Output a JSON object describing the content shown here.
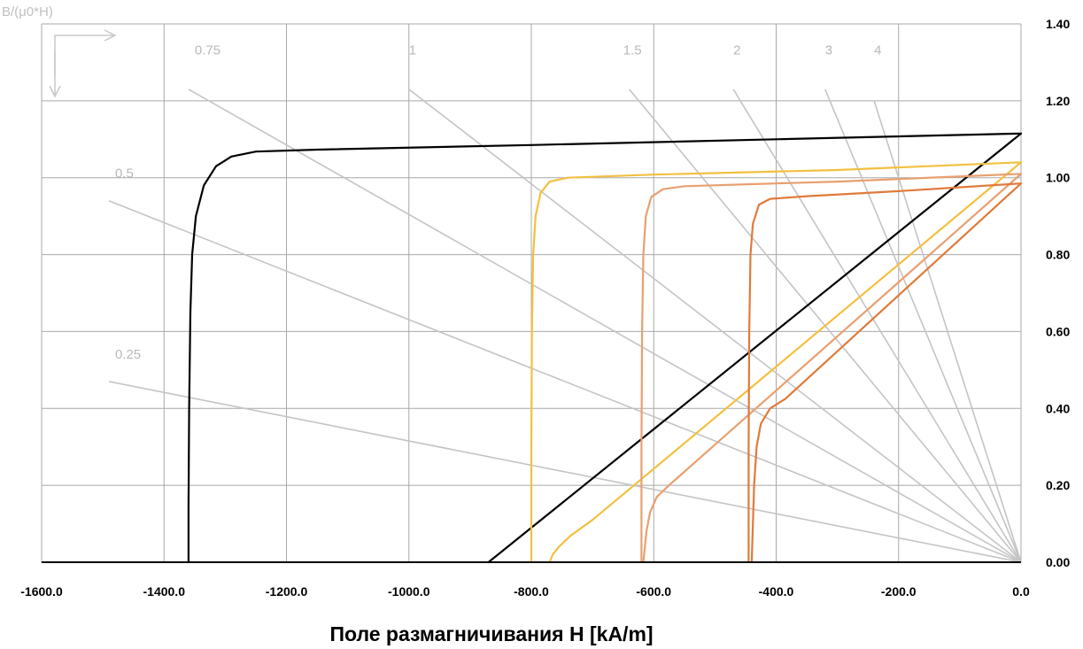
{
  "chart_data": {
    "type": "line",
    "title": "",
    "xlabel": "Поле размагничивания H [kA/m]",
    "ylabel": "B/(μ0*H)",
    "xlim": [
      -1600,
      0
    ],
    "ylim": [
      0,
      1.4
    ],
    "x_ticks": [
      "-1600.0",
      "-1400.0",
      "-1200.0",
      "-1000.0",
      "-800.0",
      "-600.0",
      "-400.0",
      "-200.0",
      "0.0"
    ],
    "y_ticks": [
      "0.00",
      "0.20",
      "0.40",
      "0.60",
      "0.80",
      "1.00",
      "1.20",
      "1.40"
    ],
    "grid": true,
    "y_axis_side": "right",
    "load_lines": [
      {
        "label": "0.25",
        "label_at": [
          -1480,
          0.53
        ],
        "from": [
          -1490,
          0.47
        ],
        "to": [
          0,
          0
        ]
      },
      {
        "label": "0.5",
        "label_at": [
          -1480,
          1.0
        ],
        "from": [
          -1490,
          0.94
        ],
        "to": [
          0,
          0
        ]
      },
      {
        "label": "0.75",
        "label_at": [
          -1350,
          1.32
        ],
        "from": [
          -1360,
          1.23
        ],
        "to": [
          0,
          0
        ]
      },
      {
        "label": "1",
        "label_at": [
          -1000,
          1.32
        ],
        "from": [
          -1000,
          1.23
        ],
        "to": [
          0,
          0
        ]
      },
      {
        "label": "1.5",
        "label_at": [
          -650,
          1.32
        ],
        "from": [
          -640,
          1.23
        ],
        "to": [
          0,
          0
        ]
      },
      {
        "label": "2",
        "label_at": [
          -470,
          1.32
        ],
        "from": [
          -470,
          1.23
        ],
        "to": [
          0,
          0
        ]
      },
      {
        "label": "3",
        "label_at": [
          -320,
          1.32
        ],
        "from": [
          -320,
          1.23
        ],
        "to": [
          0,
          0
        ]
      },
      {
        "label": "4",
        "label_at": [
          -240,
          1.32
        ],
        "from": [
          -240,
          1.2
        ],
        "to": [
          0,
          0
        ]
      }
    ],
    "series": [
      {
        "color": "#000000",
        "width": 2.2,
        "points": [
          [
            -1360,
            0
          ],
          [
            -1360,
            0.15
          ],
          [
            -1359,
            0.4
          ],
          [
            -1357,
            0.65
          ],
          [
            -1354,
            0.8
          ],
          [
            -1348,
            0.9
          ],
          [
            -1335,
            0.98
          ],
          [
            -1315,
            1.03
          ],
          [
            -1290,
            1.055
          ],
          [
            -1250,
            1.068
          ],
          [
            -1150,
            1.073
          ],
          [
            -800,
            1.085
          ],
          [
            -400,
            1.1
          ],
          [
            0,
            1.115
          ]
        ]
      },
      {
        "color": "#000000",
        "width": 2.2,
        "points": [
          [
            -870,
            0
          ],
          [
            0,
            1.115
          ]
        ]
      },
      {
        "color": "#f2c040",
        "width": 2.2,
        "points": [
          [
            -800,
            0
          ],
          [
            -800,
            0.3
          ],
          [
            -799,
            0.6
          ],
          [
            -797,
            0.8
          ],
          [
            -793,
            0.9
          ],
          [
            -785,
            0.96
          ],
          [
            -770,
            0.99
          ],
          [
            -740,
            1.0
          ],
          [
            -600,
            1.008
          ],
          [
            -300,
            1.02
          ],
          [
            0,
            1.04
          ]
        ]
      },
      {
        "color": "#f2c040",
        "width": 2.2,
        "points": [
          [
            -770,
            0
          ],
          [
            -765,
            0.02
          ],
          [
            -755,
            0.04
          ],
          [
            -735,
            0.07
          ],
          [
            -700,
            0.11
          ],
          [
            0,
            1.04
          ]
        ]
      },
      {
        "color": "#e8a070",
        "width": 2.2,
        "points": [
          [
            -620,
            0
          ],
          [
            -620,
            0.3
          ],
          [
            -619,
            0.6
          ],
          [
            -617,
            0.8
          ],
          [
            -613,
            0.9
          ],
          [
            -604,
            0.95
          ],
          [
            -585,
            0.97
          ],
          [
            -550,
            0.978
          ],
          [
            -300,
            0.99
          ],
          [
            0,
            1.01
          ]
        ]
      },
      {
        "color": "#e8a070",
        "width": 2.2,
        "points": [
          [
            -617,
            0
          ],
          [
            -612,
            0.08
          ],
          [
            -606,
            0.13
          ],
          [
            -595,
            0.17
          ],
          [
            -575,
            0.2
          ],
          [
            0,
            1.01
          ]
        ]
      },
      {
        "color": "#e07a3a",
        "width": 2.2,
        "points": [
          [
            -445,
            0
          ],
          [
            -445,
            0.3
          ],
          [
            -444,
            0.6
          ],
          [
            -442,
            0.8
          ],
          [
            -438,
            0.88
          ],
          [
            -428,
            0.93
          ],
          [
            -410,
            0.945
          ],
          [
            -350,
            0.952
          ],
          [
            -200,
            0.965
          ],
          [
            0,
            0.985
          ]
        ]
      },
      {
        "color": "#e07a3a",
        "width": 2.2,
        "points": [
          [
            -440,
            0
          ],
          [
            -436,
            0.2
          ],
          [
            -432,
            0.3
          ],
          [
            -425,
            0.36
          ],
          [
            -410,
            0.4
          ],
          [
            -385,
            0.425
          ],
          [
            0,
            0.985
          ]
        ]
      }
    ]
  }
}
